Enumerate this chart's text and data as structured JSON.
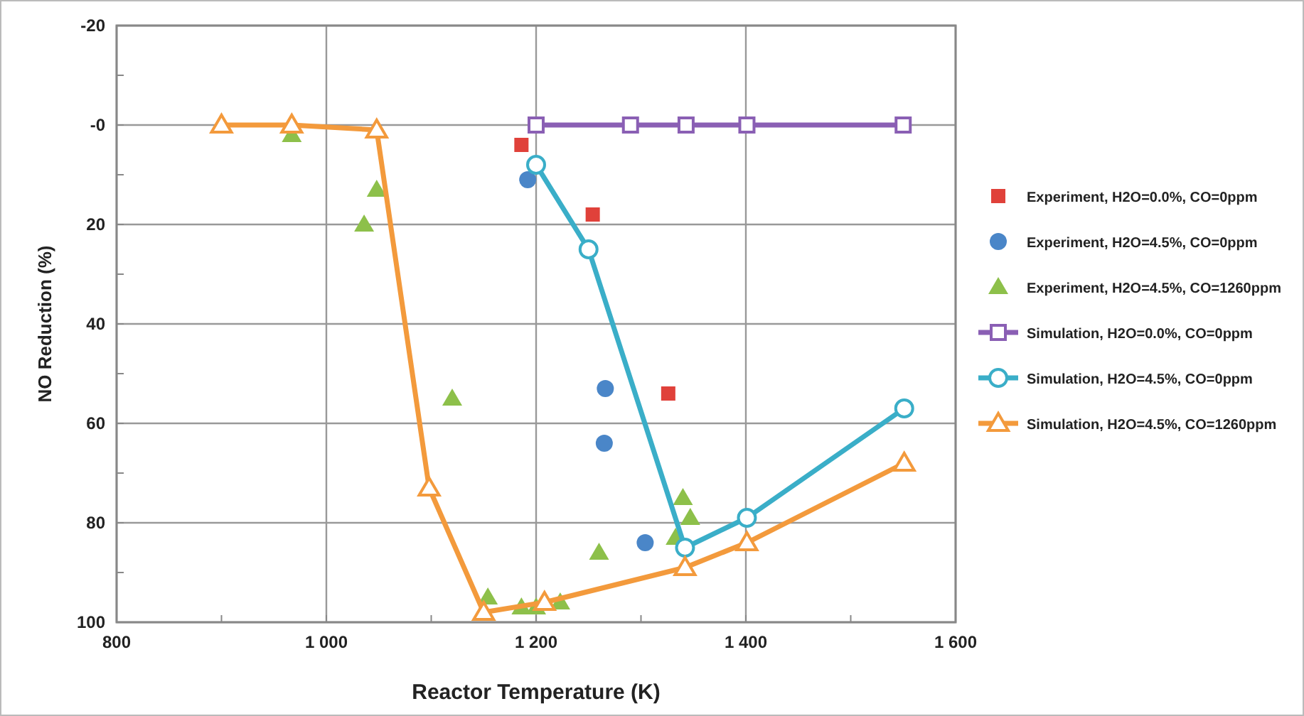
{
  "chart_data": {
    "type": "scatter",
    "xlabel": "Reactor Temperature (K)",
    "ylabel": "NO Reduction (%)",
    "xlim": [
      800,
      1600
    ],
    "xticks": [
      800,
      {
        "value": 900,
        "label": null
      },
      {
        "value": 1000,
        "label": "1 000"
      },
      {
        "value": 1100,
        "label": null
      },
      {
        "value": 1200,
        "label": "1 200"
      },
      {
        "value": 1300,
        "label": null
      },
      {
        "value": 1400,
        "label": "1 400"
      },
      {
        "value": 1500,
        "label": null
      },
      {
        "value": 1600,
        "label": "1 600"
      }
    ],
    "ylim": [
      100,
      -20
    ],
    "yticks": [
      -20,
      {
        "value": -10,
        "label": null
      },
      {
        "value": 0,
        "label": "-0"
      },
      {
        "value": 10,
        "label": null
      },
      20,
      {
        "value": 30,
        "label": null
      },
      40,
      {
        "value": 50,
        "label": null
      },
      60,
      {
        "value": 70,
        "label": null
      },
      80,
      {
        "value": 90,
        "label": null
      },
      100
    ],
    "grid": true,
    "legend": "right",
    "series": [
      {
        "name": "Experiment, H2O=0.0%, CO=0ppm",
        "type": "scatter",
        "marker": "square",
        "color": "#e0413a",
        "x": [
          1186,
          1254,
          1326
        ],
        "values": [
          4,
          18,
          54
        ]
      },
      {
        "name": "Experiment, H2O=4.5%, CO=0ppm",
        "type": "scatter",
        "marker": "circle",
        "color": "#4a86c8",
        "x": [
          1192,
          1266,
          1265,
          1304
        ],
        "values": [
          11,
          53,
          64,
          84
        ]
      },
      {
        "name": "Experiment, H2O=4.5%, CO=1260ppm",
        "type": "scatter",
        "marker": "triangle",
        "color": "#8dc04a",
        "x": [
          967,
          1036,
          1048,
          1120,
          1154,
          1186,
          1200,
          1223,
          1260,
          1333,
          1340,
          1347
        ],
        "values": [
          2,
          20,
          13,
          55,
          95,
          97,
          97,
          96,
          86,
          83,
          75,
          79
        ]
      },
      {
        "name": "Simulation, H2O=0.0%, CO=0ppm",
        "type": "line",
        "marker": "square",
        "color": "#8a5fb4",
        "x": [
          1200,
          1290,
          1343,
          1401,
          1550
        ],
        "values": [
          0,
          0,
          0,
          0,
          0
        ]
      },
      {
        "name": "Simulation, H2O=4.5%, CO=0ppm",
        "type": "line",
        "marker": "circle",
        "color": "#3aaec8",
        "x": [
          1200,
          1250,
          1342,
          1401,
          1551
        ],
        "values": [
          8,
          25,
          85,
          79,
          57
        ]
      },
      {
        "name": "Simulation, H2O=4.5%, CO=1260ppm",
        "type": "line",
        "marker": "triangle",
        "color": "#f39a3c",
        "x": [
          900,
          967,
          1048,
          1098,
          1150,
          1208,
          1342,
          1401,
          1551
        ],
        "values": [
          0,
          0,
          1,
          73,
          98,
          96,
          89,
          84,
          68
        ]
      }
    ]
  }
}
